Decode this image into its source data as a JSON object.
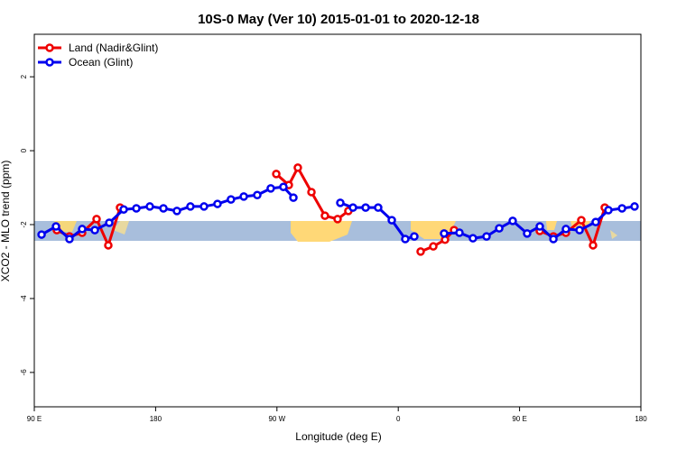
{
  "chart_data": {
    "type": "line",
    "title": "10S-0 May (Ver 10)   2015-01-01 to 2020-12-18",
    "x_label": "Longitude (deg E)",
    "y_label": "XCO2 - MLO trend (ppm)",
    "xlim": [
      90,
      540
    ],
    "xticks": [
      {
        "value": 90,
        "label": "90 E"
      },
      {
        "value": 180,
        "label": "180"
      },
      {
        "value": 270,
        "label": "90 W"
      },
      {
        "value": 360,
        "label": "0"
      },
      {
        "value": 450,
        "label": "90 E"
      },
      {
        "value": 540,
        "label": "180"
      }
    ],
    "ylim": [
      -6.93,
      3.15
    ],
    "yticks": [
      2,
      0,
      -2,
      -4,
      -6
    ],
    "legend": "top-left",
    "series": [
      {
        "name": "Land (Nadir&Glint)",
        "color": "#ee0000",
        "x": [
          106.7,
          116.1,
          125.5,
          136.2,
          144.9,
          153.6,
          null,
          269.5,
          278.8,
          285.5,
          295.6,
          305.6,
          315.0,
          323.0,
          null,
          376.6,
          386.0,
          394.7,
          401.4,
          null,
          465.0,
          475.1,
          484.4,
          495.8,
          504.5,
          513.2
        ],
        "values": [
          -2.15,
          -2.32,
          -2.22,
          -1.85,
          -2.56,
          -1.54,
          null,
          -0.63,
          -0.93,
          -0.46,
          -1.12,
          -1.76,
          -1.85,
          -1.63,
          null,
          -2.73,
          -2.59,
          -2.41,
          -2.15,
          null,
          -2.17,
          -2.32,
          -2.22,
          -1.88,
          -2.56,
          -1.54
        ]
      },
      {
        "name": "Ocean (Glint)",
        "color": "#0000ee",
        "x": [
          95.4,
          106.1,
          116.1,
          125.5,
          134.9,
          145.6,
          156.3,
          165.7,
          175.7,
          185.8,
          195.8,
          205.8,
          215.9,
          225.9,
          235.9,
          245.4,
          255.4,
          265.4,
          274.8,
          282.2,
          null,
          317.0,
          326.4,
          335.8,
          345.1,
          355.2,
          365.2,
          371.9,
          null,
          394.0,
          405.4,
          415.4,
          425.5,
          434.9,
          444.9,
          455.6,
          465.0,
          475.1,
          484.4,
          494.5,
          506.5,
          515.9,
          526.0,
          535.3
        ],
        "values": [
          -2.27,
          -2.05,
          -2.39,
          -2.12,
          -2.15,
          -1.95,
          -1.59,
          -1.56,
          -1.51,
          -1.56,
          -1.63,
          -1.51,
          -1.51,
          -1.44,
          -1.32,
          -1.24,
          -1.2,
          -1.02,
          -0.98,
          -1.27,
          null,
          -1.41,
          -1.54,
          -1.54,
          -1.54,
          -1.88,
          -2.39,
          -2.32,
          null,
          -2.24,
          -2.22,
          -2.37,
          -2.32,
          -2.1,
          -1.9,
          -2.24,
          -2.05,
          -2.39,
          -2.12,
          -2.15,
          -1.93,
          -1.61,
          -1.56,
          -1.51
        ]
      }
    ]
  }
}
